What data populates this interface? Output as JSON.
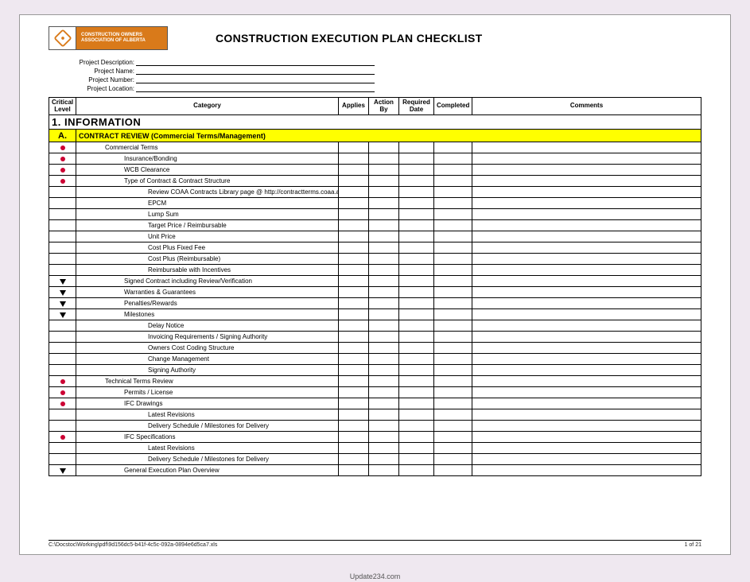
{
  "colors": {
    "page_bg": "#efe8f0",
    "sheet_bg": "#ffffff",
    "border": "#000000",
    "logo_accent": "#d97a1a",
    "subsection_bg": "#ffff00",
    "critical_dot": "#cc0033"
  },
  "logo": {
    "line1": "CONSTRUCTION OWNERS",
    "line2": "ASSOCIATION OF ALBERTA"
  },
  "title": "CONSTRUCTION EXECUTION PLAN CHECKLIST",
  "meta": {
    "labels": {
      "description": "Project Description:",
      "name": "Project Name:",
      "number": "Project Number:",
      "location": "Project Location:"
    },
    "values": {
      "description": "",
      "name": "",
      "number": "",
      "location": ""
    }
  },
  "columns": {
    "critical": "Critical Level",
    "category": "Category",
    "applies": "Applies",
    "action_by": "Action By",
    "required_date": "Required Date",
    "completed": "Completed",
    "comments": "Comments"
  },
  "section": {
    "number": "1.",
    "title": "INFORMATION"
  },
  "subsection": {
    "letter": "A.",
    "title": "CONTRACT REVIEW (Commercial Terms/Management)"
  },
  "rows": [
    {
      "marker": "dot",
      "indent": 1,
      "text": "Commercial Terms"
    },
    {
      "marker": "dot",
      "indent": 2,
      "text": "Insurance/Bonding"
    },
    {
      "marker": "dot",
      "indent": 2,
      "text": "WCB Clearance"
    },
    {
      "marker": "dot",
      "indent": 2,
      "text": "Type of Contract & Contract Structure"
    },
    {
      "marker": "",
      "indent": 3,
      "text": "Review COAA Contracts Library page @ http://contractterms.coaa.ab.ca/library.asp"
    },
    {
      "marker": "",
      "indent": 3,
      "text": "EPCM"
    },
    {
      "marker": "",
      "indent": 3,
      "text": "Lump Sum"
    },
    {
      "marker": "",
      "indent": 3,
      "text": "Target Price / Reimbursable"
    },
    {
      "marker": "",
      "indent": 3,
      "text": "Unit Price"
    },
    {
      "marker": "",
      "indent": 3,
      "text": "Cost Plus Fixed Fee"
    },
    {
      "marker": "",
      "indent": 3,
      "text": "Cost Plus (Reimbursable)"
    },
    {
      "marker": "",
      "indent": 3,
      "text": "Reimbursable with Incentives"
    },
    {
      "marker": "tri",
      "indent": 2,
      "text": "Signed Contract including Review/Verification"
    },
    {
      "marker": "tri",
      "indent": 2,
      "text": "Warranties & Guarantees"
    },
    {
      "marker": "tri",
      "indent": 2,
      "text": "Penalties/Rewards"
    },
    {
      "marker": "tri",
      "indent": 2,
      "text": "Milestones"
    },
    {
      "marker": "",
      "indent": 3,
      "text": "Delay Notice"
    },
    {
      "marker": "",
      "indent": 3,
      "text": "Invoicing Requirements / Signing Authority"
    },
    {
      "marker": "",
      "indent": 3,
      "text": "Owners Cost Coding Structure"
    },
    {
      "marker": "",
      "indent": 3,
      "text": "Change Management"
    },
    {
      "marker": "",
      "indent": 3,
      "text": "Signing Authority"
    },
    {
      "marker": "dot",
      "indent": 1,
      "text": "Technical Terms Review"
    },
    {
      "marker": "dot",
      "indent": 2,
      "text": "Permits / License"
    },
    {
      "marker": "dot",
      "indent": 2,
      "text": "IFC Drawings"
    },
    {
      "marker": "",
      "indent": 3,
      "text": "Latest Revisions"
    },
    {
      "marker": "",
      "indent": 3,
      "text": "Delivery Schedule / Milestones for Delivery"
    },
    {
      "marker": "dot",
      "indent": 2,
      "text": "IFC Specifications"
    },
    {
      "marker": "",
      "indent": 3,
      "text": "Latest Revisions"
    },
    {
      "marker": "",
      "indent": 3,
      "text": "Delivery Schedule / Milestones for Delivery"
    },
    {
      "marker": "tri",
      "indent": 2,
      "text": "General Execution Plan Overview"
    }
  ],
  "footer": {
    "path": "C:\\Docstoc\\Working\\pdf\\9d156dc5-b41f-4c5c-092a-0894e6d5ca7.xls",
    "page": "1 of 21"
  },
  "watermark": "Update234.com"
}
